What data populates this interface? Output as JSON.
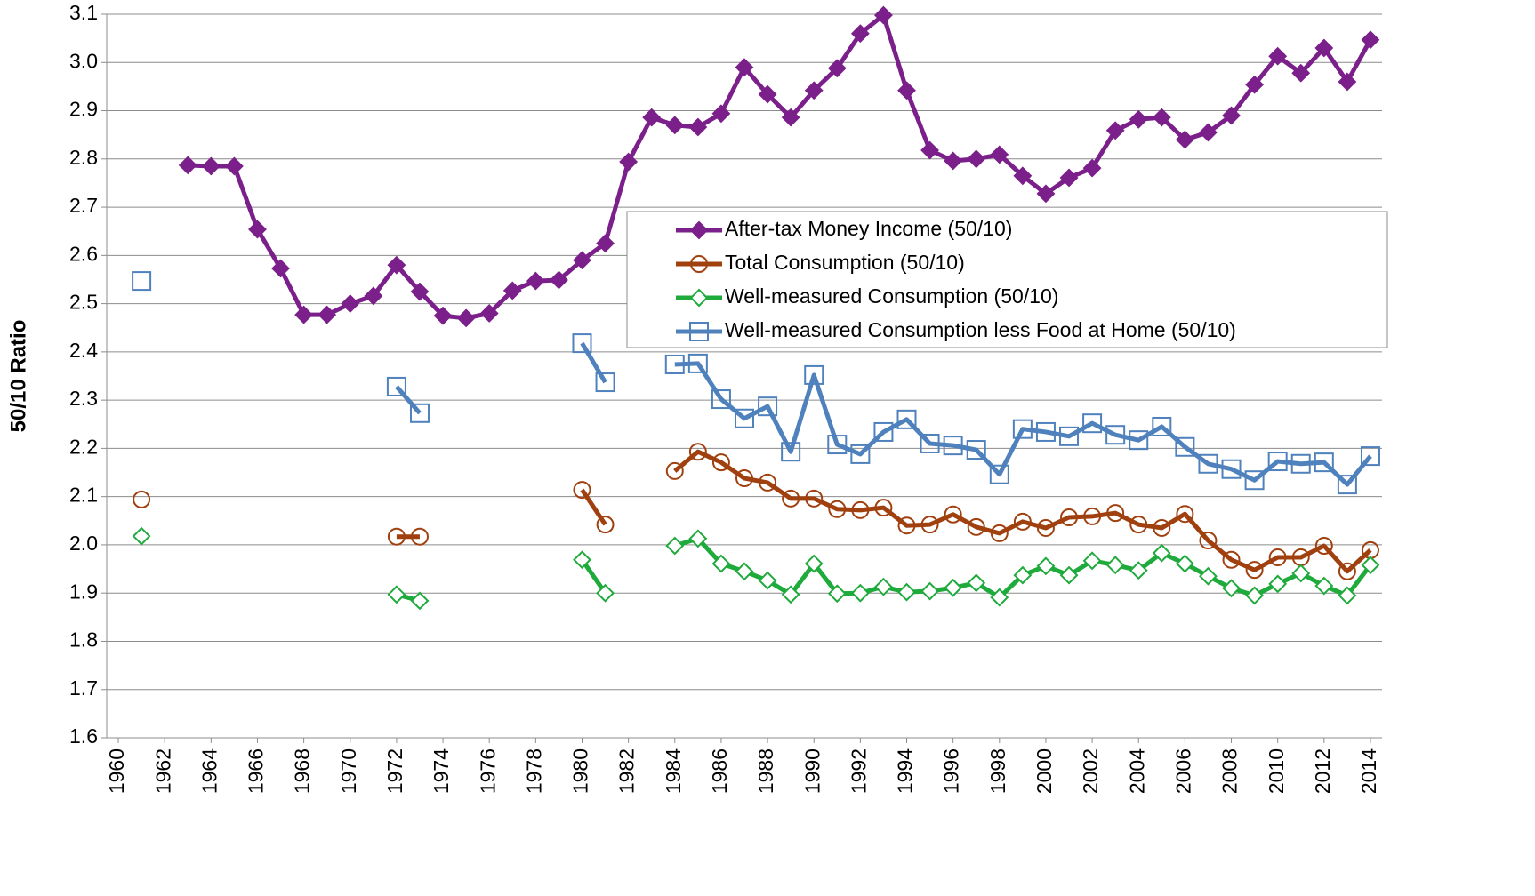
{
  "chart_data": {
    "type": "line",
    "y_label": "50/10 Ratio",
    "x": [
      1961,
      1962,
      1963,
      1964,
      1965,
      1966,
      1967,
      1968,
      1969,
      1970,
      1971,
      1972,
      1973,
      1974,
      1975,
      1976,
      1977,
      1978,
      1979,
      1980,
      1981,
      1982,
      1983,
      1984,
      1985,
      1986,
      1987,
      1988,
      1989,
      1990,
      1991,
      1992,
      1993,
      1994,
      1995,
      1996,
      1997,
      1998,
      1999,
      2000,
      2001,
      2002,
      2003,
      2004,
      2005,
      2006,
      2007,
      2008,
      2009,
      2010,
      2011,
      2012,
      2013,
      2014
    ],
    "xlim": [
      1959.5,
      2014.5
    ],
    "xticks": [
      1960,
      1962,
      1964,
      1966,
      1968,
      1970,
      1972,
      1974,
      1976,
      1978,
      1980,
      1982,
      1984,
      1986,
      1988,
      1990,
      1992,
      1994,
      1996,
      1998,
      2000,
      2002,
      2004,
      2006,
      2008,
      2010,
      2012,
      2014
    ],
    "ylim": [
      1.6,
      3.1
    ],
    "yticks": [
      1.6,
      1.7,
      1.8,
      1.9,
      {
        "value": 2,
        "label": "2.0"
      },
      2.1,
      2.2,
      2.3,
      2.4,
      2.5,
      2.6,
      2.7,
      2.8,
      2.9,
      {
        "value": 3,
        "label": "3.0"
      },
      3.1
    ],
    "grid": true,
    "legend": "upper right",
    "series": [
      {
        "name": "After-tax Money Income (50/10)",
        "color": "#7b1f8a",
        "marker": "diamond-filled",
        "values": [
          null,
          null,
          2.787,
          2.785,
          2.785,
          2.654,
          2.573,
          2.477,
          2.477,
          2.5,
          2.516,
          2.58,
          2.525,
          2.475,
          2.47,
          2.48,
          2.527,
          2.547,
          2.549,
          2.59,
          2.625,
          2.794,
          2.886,
          2.87,
          2.866,
          2.894,
          2.99,
          2.934,
          2.886,
          2.942,
          2.988,
          3.06,
          3.098,
          2.942,
          2.818,
          2.796,
          2.8,
          2.809,
          2.765,
          2.728,
          2.761,
          2.781,
          2.859,
          2.882,
          2.886,
          2.84,
          2.855,
          2.89,
          2.954,
          3.013,
          2.978,
          3.03,
          2.96,
          3.047
        ]
      },
      {
        "name": "Total Consumption (50/10)",
        "color": "#a0400f",
        "marker": "circle-open",
        "values": [
          2.094,
          null,
          null,
          null,
          null,
          null,
          null,
          null,
          null,
          null,
          null,
          2.017,
          2.017,
          null,
          null,
          null,
          null,
          null,
          null,
          2.114,
          2.042,
          null,
          null,
          2.153,
          2.193,
          2.171,
          2.138,
          2.129,
          2.096,
          2.096,
          2.074,
          2.072,
          2.077,
          2.04,
          2.042,
          2.063,
          2.037,
          2.024,
          2.048,
          2.035,
          2.057,
          2.059,
          2.066,
          2.042,
          2.035,
          2.064,
          2.009,
          1.969,
          1.948,
          1.974,
          1.974,
          1.998,
          1.945,
          1.989
        ]
      },
      {
        "name": "Well-measured Consumption (50/10)",
        "color": "#1faa3c",
        "marker": "diamond-open",
        "values": [
          2.018,
          null,
          null,
          null,
          null,
          null,
          null,
          null,
          null,
          null,
          null,
          1.897,
          1.884,
          null,
          null,
          null,
          null,
          null,
          null,
          1.969,
          1.9,
          null,
          null,
          1.998,
          2.013,
          1.961,
          1.945,
          1.926,
          1.897,
          1.961,
          1.899,
          1.9,
          1.913,
          1.902,
          1.904,
          1.911,
          1.921,
          1.891,
          1.937,
          1.956,
          1.937,
          1.967,
          1.958,
          1.947,
          1.983,
          1.961,
          1.935,
          1.91,
          1.895,
          1.919,
          1.941,
          1.915,
          1.895,
          1.958
        ]
      },
      {
        "name": "Well-measured Consumption less Food at Home (50/10)",
        "color": "#4f81bd",
        "marker": "square-open",
        "values": [
          2.547,
          null,
          null,
          null,
          null,
          null,
          null,
          null,
          null,
          null,
          null,
          2.328,
          2.273,
          null,
          null,
          null,
          null,
          null,
          null,
          2.418,
          2.337,
          null,
          null,
          2.374,
          2.376,
          2.302,
          2.262,
          2.287,
          2.193,
          2.352,
          2.208,
          2.188,
          2.234,
          2.26,
          2.21,
          2.206,
          2.197,
          2.146,
          2.24,
          2.234,
          2.225,
          2.252,
          2.228,
          2.217,
          2.245,
          2.203,
          2.168,
          2.157,
          2.134,
          2.173,
          2.168,
          2.171,
          2.125,
          2.184
        ]
      }
    ]
  }
}
